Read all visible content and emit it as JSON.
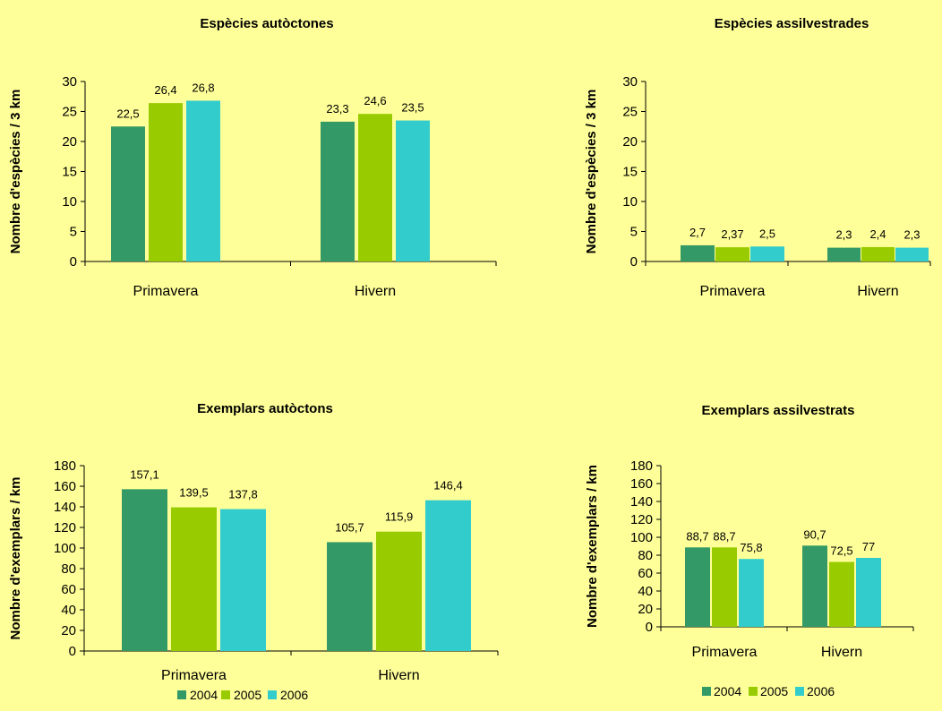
{
  "colors": {
    "2004": "#339966",
    "2005": "#99cc00",
    "2006": "#33cccc",
    "axis": "#000000",
    "background": "#ffff99"
  },
  "legend_series": [
    "2004",
    "2005",
    "2006"
  ],
  "chart_data": [
    {
      "type": "bar",
      "title": "Espècies autòctones",
      "ylabel": "Nombre d'espècies / 3 km",
      "ylim": [
        0,
        30
      ],
      "yticks": [
        0,
        5,
        10,
        15,
        20,
        25,
        30
      ],
      "categories": [
        "Primavera",
        "Hivern"
      ],
      "series": [
        {
          "name": "2004",
          "values": [
            22.5,
            23.3
          ],
          "labels": [
            "22,5",
            "23,3"
          ]
        },
        {
          "name": "2005",
          "values": [
            26.4,
            24.6
          ],
          "labels": [
            "26,4",
            "24,6"
          ]
        },
        {
          "name": "2006",
          "values": [
            26.8,
            23.5
          ],
          "labels": [
            "26,8",
            "23,5"
          ]
        }
      ],
      "legend": false
    },
    {
      "type": "bar",
      "title": "Espècies assilvestrades",
      "ylabel": "Nombre d'espècies / 3 km",
      "ylim": [
        0,
        30
      ],
      "yticks": [
        0,
        5,
        10,
        15,
        20,
        25,
        30
      ],
      "categories": [
        "Primavera",
        "Hivern"
      ],
      "series": [
        {
          "name": "2004",
          "values": [
            2.7,
            2.3
          ],
          "labels": [
            "2,7",
            "2,3"
          ]
        },
        {
          "name": "2005",
          "values": [
            2.37,
            2.4
          ],
          "labels": [
            "2,37",
            "2,4"
          ]
        },
        {
          "name": "2006",
          "values": [
            2.5,
            2.3
          ],
          "labels": [
            "2,5",
            "2,3"
          ]
        }
      ],
      "legend": false
    },
    {
      "type": "bar",
      "title": "Exemplars autòctons",
      "ylabel": "Nombre d'exemplars / km",
      "ylim": [
        0,
        180
      ],
      "yticks": [
        0,
        20,
        40,
        60,
        80,
        100,
        120,
        140,
        160,
        180
      ],
      "categories": [
        "Primavera",
        "Hivern"
      ],
      "series": [
        {
          "name": "2004",
          "values": [
            157.1,
            105.7
          ],
          "labels": [
            "157,1",
            "105,7"
          ]
        },
        {
          "name": "2005",
          "values": [
            139.5,
            115.9
          ],
          "labels": [
            "139,5",
            "115,9"
          ]
        },
        {
          "name": "2006",
          "values": [
            137.8,
            146.4
          ],
          "labels": [
            "137,8",
            "146,4"
          ]
        }
      ],
      "legend": true,
      "legend_position": "bottom"
    },
    {
      "type": "bar",
      "title": "Exemplars assilvestrats",
      "ylabel": "Nombre d'exemplars / km",
      "ylim": [
        0,
        180
      ],
      "yticks": [
        0,
        20,
        40,
        60,
        80,
        100,
        120,
        140,
        160,
        180
      ],
      "categories": [
        "Primavera",
        "Hivern"
      ],
      "series": [
        {
          "name": "2004",
          "values": [
            88.7,
            90.7
          ],
          "labels": [
            "88,7",
            "90,7"
          ]
        },
        {
          "name": "2005",
          "values": [
            88.7,
            72.5
          ],
          "labels": [
            "88,7",
            "72,5"
          ]
        },
        {
          "name": "2006",
          "values": [
            75.8,
            77
          ],
          "labels": [
            "75,8",
            "77"
          ]
        }
      ],
      "legend": true,
      "legend_position": "bottom"
    }
  ]
}
